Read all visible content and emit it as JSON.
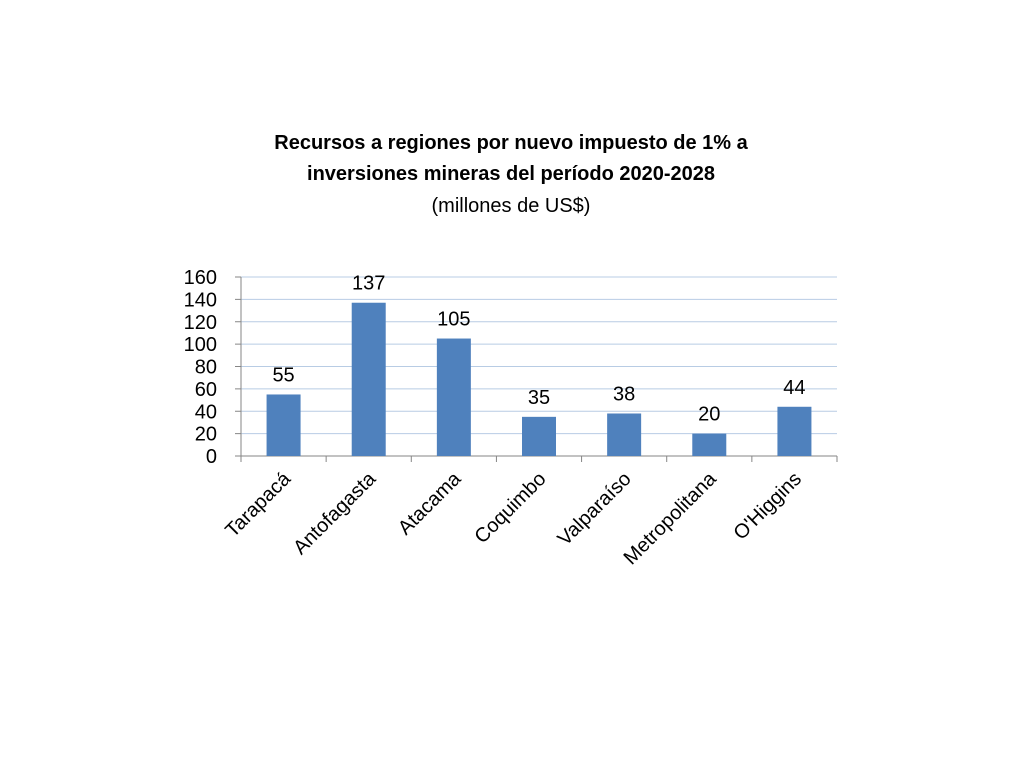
{
  "chart_data": {
    "type": "bar",
    "title": "Recursos a regiones por nuevo impuesto de 1% a",
    "title_line2": "inversiones mineras del período 2020-2028",
    "subtitle": "(millones de US$)",
    "categories": [
      "Tarapacá",
      "Antofagasta",
      "Atacama",
      "Coquimbo",
      "Valparaíso",
      "Metropolitana",
      "O'Higgins"
    ],
    "values": [
      55,
      137,
      105,
      35,
      38,
      20,
      44
    ],
    "data_labels": [
      "55",
      "137",
      "105",
      "35",
      "38",
      "20",
      "44"
    ],
    "ylim": [
      0,
      160
    ],
    "yticks": [
      0,
      20,
      40,
      60,
      80,
      100,
      120,
      140,
      160
    ],
    "grid": true,
    "legend": "none",
    "colors": {
      "bar": "#4f81bd",
      "grid": "#b8cce4",
      "axis": "#868686"
    }
  }
}
